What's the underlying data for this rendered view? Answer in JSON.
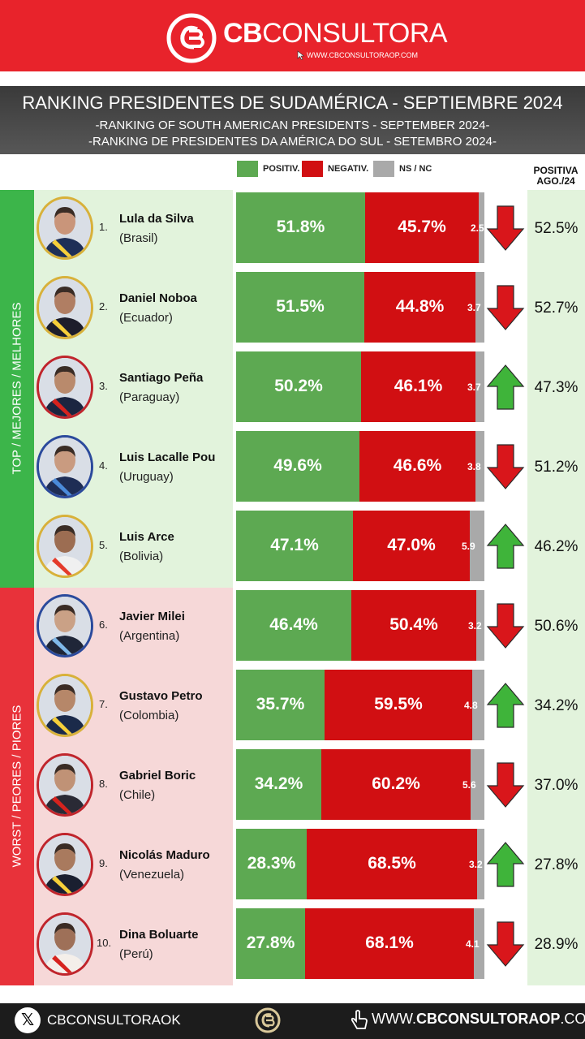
{
  "header": {
    "brand_bold": "CB",
    "brand_light": "CONSULTORA",
    "url": "WWW.CBCONSULTORAOP.COM"
  },
  "title": {
    "main": "RANKING PRESIDENTES DE SUDAMÉRICA - SEPTIEMBRE 2024",
    "sub_en": "-RANKING OF SOUTH AMERICAN PRESIDENTS - SEPTEMBER 2024-",
    "sub_pt": "-RANKING DE PRESIDENTES DA AMÉRICA DO SUL - SETEMBRO 2024-"
  },
  "legend": {
    "positive": "POSITIV.",
    "negative": "NEGATIV.",
    "ns": "NS / NC"
  },
  "positive_previous_header": "POSITIVA AGO./24",
  "group_labels": {
    "top": "TOP / MEJORES / MELHORES",
    "bottom": "WORST / PEORES / PIORES"
  },
  "colors": {
    "positive": "#5da952",
    "negative": "#d10f12",
    "ns": "#a9a9a9",
    "header_red": "#e8232b",
    "top_green": "#3cb54a",
    "bottom_red": "#e8323a",
    "arrow_up": "#3fb43a",
    "arrow_down": "#d9161b"
  },
  "chart_data": {
    "type": "bar",
    "stacked": true,
    "orientation": "horizontal",
    "title": "RANKING PRESIDENTES DE SUDAMÉRICA - SEPTIEMBRE 2024",
    "categories": [
      "Lula da Silva",
      "Daniel Noboa",
      "Santiago Peña",
      "Luis Lacalle Pou",
      "Luis Arce",
      "Javier Milei",
      "Gustavo Petro",
      "Gabriel Boric",
      "Nicolás Maduro",
      "Dina Boluarte"
    ],
    "series": [
      {
        "name": "POSITIV.",
        "values": [
          51.8,
          51.5,
          50.2,
          49.6,
          47.1,
          46.4,
          35.7,
          34.2,
          28.3,
          27.8
        ]
      },
      {
        "name": "NEGATIV.",
        "values": [
          45.7,
          44.8,
          46.1,
          46.6,
          47.0,
          50.4,
          59.5,
          60.2,
          68.5,
          68.1
        ]
      },
      {
        "name": "NS / NC",
        "values": [
          2.5,
          3.7,
          3.7,
          3.8,
          5.9,
          3.2,
          4.8,
          5.6,
          3.2,
          4.1
        ]
      }
    ],
    "rows": [
      {
        "rank": "1.",
        "name": "Lula da Silva",
        "country": "(Brasil)",
        "positive": 51.8,
        "negative": 45.7,
        "ns": 2.5,
        "pos_label": "51.8%",
        "neg_label": "45.7%",
        "ns_label": "2.5",
        "trend": "down",
        "previous_label": "52.5%",
        "previous": 52.5
      },
      {
        "rank": "2.",
        "name": "Daniel Noboa",
        "country": "(Ecuador)",
        "positive": 51.5,
        "negative": 44.8,
        "ns": 3.7,
        "pos_label": "51.5%",
        "neg_label": "44.8%",
        "ns_label": "3.7",
        "trend": "down",
        "previous_label": "52.7%",
        "previous": 52.7
      },
      {
        "rank": "3.",
        "name": "Santiago Peña",
        "country": "(Paraguay)",
        "positive": 50.2,
        "negative": 46.1,
        "ns": 3.7,
        "pos_label": "50.2%",
        "neg_label": "46.1%",
        "ns_label": "3.7",
        "trend": "up",
        "previous_label": "47.3%",
        "previous": 47.3
      },
      {
        "rank": "4.",
        "name": "Luis Lacalle Pou",
        "country": "(Uruguay)",
        "positive": 49.6,
        "negative": 46.6,
        "ns": 3.8,
        "pos_label": "49.6%",
        "neg_label": "46.6%",
        "ns_label": "3.8",
        "trend": "down",
        "previous_label": "51.2%",
        "previous": 51.2
      },
      {
        "rank": "5.",
        "name": "Luis Arce",
        "country": "(Bolivia)",
        "positive": 47.1,
        "negative": 47.0,
        "ns": 5.9,
        "pos_label": "47.1%",
        "neg_label": "47.0%",
        "ns_label": "5.9",
        "trend": "up",
        "previous_label": "46.2%",
        "previous": 46.2
      },
      {
        "rank": "6.",
        "name": "Javier Milei",
        "country": "(Argentina)",
        "positive": 46.4,
        "negative": 50.4,
        "ns": 3.2,
        "pos_label": "46.4%",
        "neg_label": "50.4%",
        "ns_label": "3.2",
        "trend": "down",
        "previous_label": "50.6%",
        "previous": 50.6
      },
      {
        "rank": "7.",
        "name": "Gustavo Petro",
        "country": "(Colombia)",
        "positive": 35.7,
        "negative": 59.5,
        "ns": 4.8,
        "pos_label": "35.7%",
        "neg_label": "59.5%",
        "ns_label": "4.8",
        "trend": "up",
        "previous_label": "34.2%",
        "previous": 34.2
      },
      {
        "rank": "8.",
        "name": "Gabriel Boric",
        "country": "(Chile)",
        "positive": 34.2,
        "negative": 60.2,
        "ns": 5.6,
        "pos_label": "34.2%",
        "neg_label": "60.2%",
        "ns_label": "5.6",
        "trend": "down",
        "previous_label": "37.0%",
        "previous": 37.0
      },
      {
        "rank": "9.",
        "name": "Nicolás Maduro",
        "country": "(Venezuela)",
        "positive": 28.3,
        "negative": 68.5,
        "ns": 3.2,
        "pos_label": "28.3%",
        "neg_label": "68.5%",
        "ns_label": "3.2",
        "trend": "up",
        "previous_label": "27.8%",
        "previous": 27.8
      },
      {
        "rank": "10.",
        "name": "Dina Boluarte",
        "country": "(Perú)",
        "positive": 27.8,
        "negative": 68.1,
        "ns": 4.1,
        "pos_label": "27.8%",
        "neg_label": "68.1%",
        "ns_label": "4.1",
        "trend": "down",
        "previous_label": "28.9%",
        "previous": 28.9
      }
    ]
  },
  "footer": {
    "x_icon": "x-logo-icon",
    "x_handle": "CBCONSULTORAOK",
    "url_prefix": "WWW.",
    "url_bold": "CBCONSULTORAOP",
    "url_suffix": ".COM"
  }
}
